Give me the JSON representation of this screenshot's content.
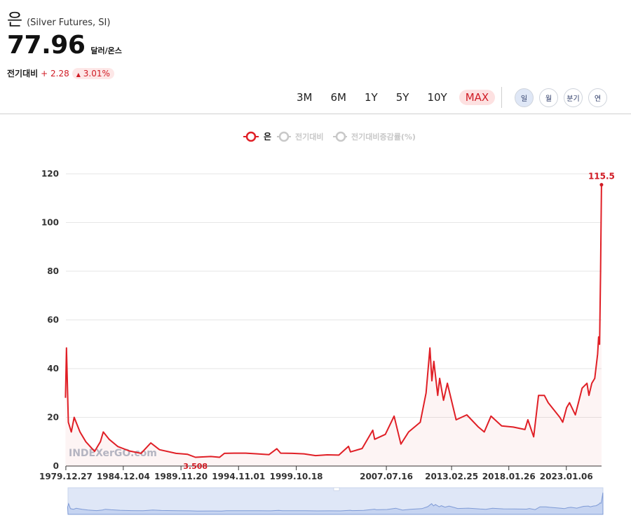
{
  "header": {
    "name": "은",
    "subtitle": "(Silver Futures, SI)",
    "price": "77.96",
    "unit": "달러/온스",
    "change_label": "전기대비",
    "change_value": "+ 2.28",
    "change_pct": "3.01%"
  },
  "ranges": [
    "3M",
    "6M",
    "1Y",
    "5Y",
    "10Y",
    "MAX"
  ],
  "active_range": "MAX",
  "periods": [
    "일",
    "월",
    "분기",
    "연"
  ],
  "active_period": "일",
  "legend": [
    "은",
    "전기대비",
    "전기대비증감률(%)"
  ],
  "watermark": "INDEXerGO.com",
  "colors": {
    "line": "#e01f26",
    "accent": "#d01b24",
    "muted": "#c8c8c8",
    "navigator": "#dfe7f7"
  },
  "chart_data": {
    "type": "line",
    "ylim": [
      0,
      120
    ],
    "yticks": [
      0,
      20,
      40,
      60,
      80,
      100,
      120
    ],
    "xticks": [
      "1979.12.27",
      "1984.12.04",
      "1989.11.20",
      "1994.11.01",
      "1999.10.18",
      "2007.07.16",
      "2013.02.25",
      "2018.01.26",
      "2023.01.06"
    ],
    "grid": true,
    "max_label": "115.5",
    "min_label": "3.508",
    "series": [
      {
        "name": "은",
        "points": [
          [
            "1979.12",
            28
          ],
          [
            "1980.01",
            48.5
          ],
          [
            "1980.03",
            18
          ],
          [
            "1980.06",
            14
          ],
          [
            "1980.09",
            20
          ],
          [
            "1981.03",
            14
          ],
          [
            "1981.09",
            10
          ],
          [
            "1982.06",
            6
          ],
          [
            "1982.12",
            10
          ],
          [
            "1983.03",
            14
          ],
          [
            "1983.09",
            11
          ],
          [
            "1984.06",
            8
          ],
          [
            "1985.06",
            6.2
          ],
          [
            "1986.06",
            5.2
          ],
          [
            "1987.04",
            9.5
          ],
          [
            "1988.01",
            6.7
          ],
          [
            "1989.06",
            5.2
          ],
          [
            "1990.06",
            4.8
          ],
          [
            "1991.02",
            3.6
          ],
          [
            "1992.06",
            3.9
          ],
          [
            "1993.03",
            3.6
          ],
          [
            "1993.08",
            5.2
          ],
          [
            "1994.06",
            5.3
          ],
          [
            "1995.06",
            5.3
          ],
          [
            "1996.06",
            5.0
          ],
          [
            "1997.06",
            4.7
          ],
          [
            "1998.02",
            7.1
          ],
          [
            "1998.06",
            5.3
          ],
          [
            "1999.06",
            5.2
          ],
          [
            "2000.06",
            5.0
          ],
          [
            "2001.06",
            4.3
          ],
          [
            "2002.06",
            4.6
          ],
          [
            "2003.06",
            4.5
          ],
          [
            "2004.04",
            8.1
          ],
          [
            "2004.06",
            5.8
          ],
          [
            "2005.06",
            7.2
          ],
          [
            "2006.05",
            14.7
          ],
          [
            "2006.07",
            11
          ],
          [
            "2007.06",
            13
          ],
          [
            "2008.03",
            20.5
          ],
          [
            "2008.10",
            9.0
          ],
          [
            "2009.06",
            14
          ],
          [
            "2010.06",
            18
          ],
          [
            "2010.12",
            30
          ],
          [
            "2011.04",
            48.5
          ],
          [
            "2011.06",
            35
          ],
          [
            "2011.08",
            43
          ],
          [
            "2011.12",
            29
          ],
          [
            "2012.02",
            36
          ],
          [
            "2012.06",
            27
          ],
          [
            "2012.10",
            34
          ],
          [
            "2013.04",
            24
          ],
          [
            "2013.07",
            19
          ],
          [
            "2014.06",
            21
          ],
          [
            "2015.06",
            16
          ],
          [
            "2015.12",
            14
          ],
          [
            "2016.07",
            20.5
          ],
          [
            "2017.06",
            16.5
          ],
          [
            "2018.06",
            16
          ],
          [
            "2019.06",
            15
          ],
          [
            "2019.09",
            19
          ],
          [
            "2020.03",
            12
          ],
          [
            "2020.08",
            29
          ],
          [
            "2021.02",
            29
          ],
          [
            "2021.06",
            26
          ],
          [
            "2022.06",
            20
          ],
          [
            "2022.09",
            18
          ],
          [
            "2023.01",
            24
          ],
          [
            "2023.04",
            26
          ],
          [
            "2023.10",
            21
          ],
          [
            "2024.05",
            32
          ],
          [
            "2024.10",
            34
          ],
          [
            "2024.12",
            29
          ],
          [
            "2025.03",
            34
          ],
          [
            "2025.06",
            36
          ],
          [
            "2025.09",
            46
          ],
          [
            "2025.10",
            53
          ],
          [
            "2025.11",
            50
          ],
          [
            "2025.12",
            80
          ],
          [
            "2026.01",
            115.5
          ]
        ]
      }
    ]
  }
}
